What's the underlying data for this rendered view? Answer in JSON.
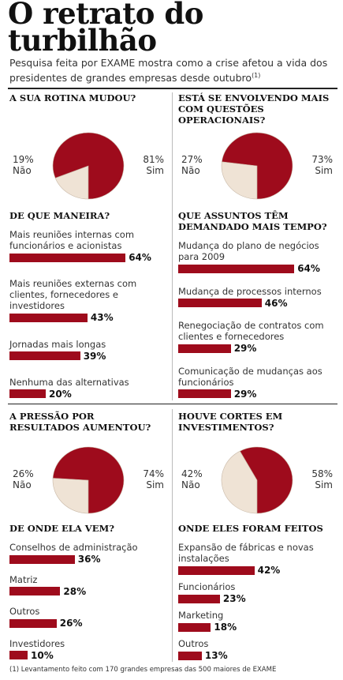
{
  "header": {
    "title": "O retrato do turbilhão",
    "subtitle": "Pesquisa feita por EXAME mostra como a crise afetou a vida dos presidentes de grandes empresas desde outubro",
    "note_ref": "(1)"
  },
  "footnote": "(1) Levantamento feito com 170 grandes empresas das 500 maiores de EXAME",
  "chart_data": [
    {
      "type": "pie",
      "title": "A SUA ROTINA MUDOU?",
      "categories": [
        "Sim",
        "Não"
      ],
      "values": [
        81,
        19
      ],
      "value_labels": [
        "81%",
        "19%"
      ],
      "colors": [
        "#9e0b1c",
        "#efe3d5"
      ]
    },
    {
      "type": "pie",
      "title": "ESTÁ SE ENVOLVENDO MAIS COM QUESTÕES OPERACIONAIS?",
      "categories": [
        "Sim",
        "Não"
      ],
      "values": [
        73,
        27
      ],
      "value_labels": [
        "73%",
        "27%"
      ],
      "colors": [
        "#9e0b1c",
        "#efe3d5"
      ]
    },
    {
      "type": "bar",
      "title": "DE QUE MANEIRA?",
      "categories": [
        "Mais reuniões internas com funcionários e acionistas",
        "Mais reuniões externas com clientes, fornecedores e investidores",
        "Jornadas mais longas",
        "Nenhuma das alternativas"
      ],
      "values": [
        64,
        43,
        39,
        20
      ],
      "value_labels": [
        "64%",
        "43%",
        "39%",
        "20%"
      ],
      "color": "#9e0b1c"
    },
    {
      "type": "bar",
      "title": "QUE ASSUNTOS TÊM DEMANDADO MAIS TEMPO?",
      "categories": [
        "Mudança do plano de negócios para 2009",
        "Mudança de processos internos",
        "Renegociação de contratos com clientes e fornecedores",
        "Comunicação de mudanças aos funcionários"
      ],
      "values": [
        64,
        46,
        29,
        29
      ],
      "value_labels": [
        "64%",
        "46%",
        "29%",
        "29%"
      ],
      "color": "#9e0b1c"
    },
    {
      "type": "pie",
      "title": "A PRESSÃO POR RESULTADOS AUMENTOU?",
      "categories": [
        "Sim",
        "Não"
      ],
      "values": [
        74,
        26
      ],
      "value_labels": [
        "74%",
        "26%"
      ],
      "colors": [
        "#9e0b1c",
        "#efe3d5"
      ]
    },
    {
      "type": "pie",
      "title": "HOUVE CORTES EM INVESTIMENTOS?",
      "categories": [
        "Sim",
        "Não"
      ],
      "values": [
        58,
        42
      ],
      "value_labels": [
        "58%",
        "42%"
      ],
      "colors": [
        "#9e0b1c",
        "#efe3d5"
      ]
    },
    {
      "type": "bar",
      "title": "DE ONDE ELA VEM?",
      "categories": [
        "Conselhos de administração",
        "Matriz",
        "Outros",
        "Investidores"
      ],
      "values": [
        36,
        28,
        26,
        10
      ],
      "value_labels": [
        "36%",
        "28%",
        "26%",
        "10%"
      ],
      "color": "#9e0b1c"
    },
    {
      "type": "bar",
      "title": "ONDE ELES FORAM FEITOS",
      "categories": [
        "Expansão de fábricas e novas instalações",
        "Funcionários",
        "Marketing",
        "Outros"
      ],
      "values": [
        42,
        23,
        18,
        13
      ],
      "value_labels": [
        "42%",
        "23%",
        "18%",
        "13%"
      ],
      "color": "#9e0b1c"
    }
  ]
}
